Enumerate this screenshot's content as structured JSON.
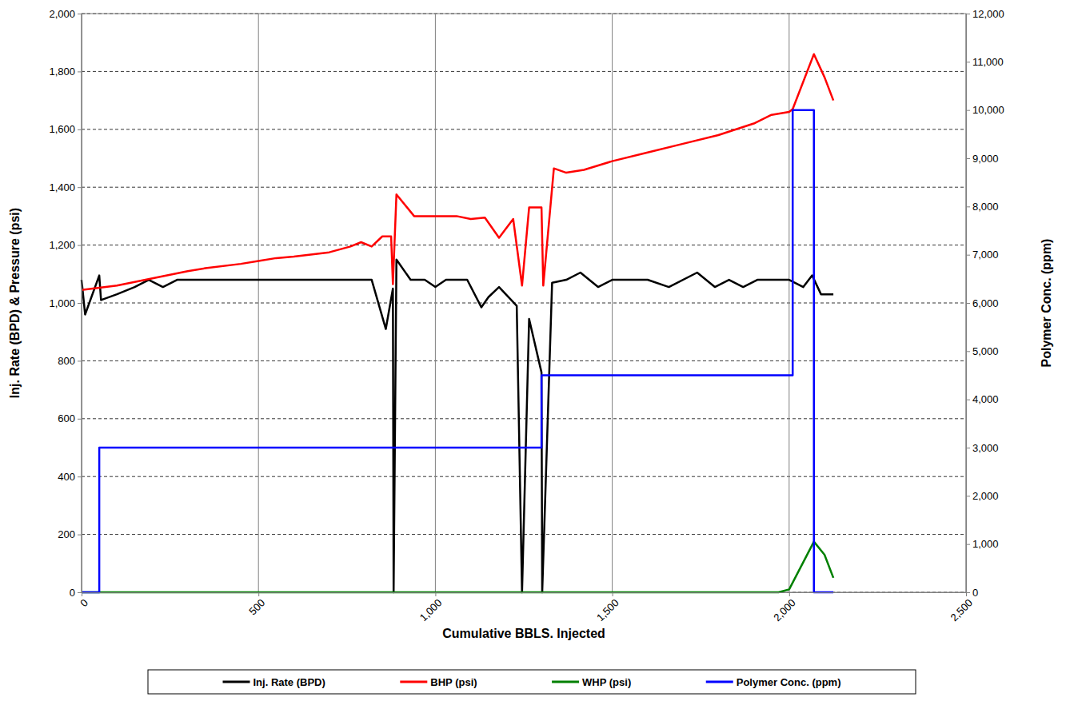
{
  "chart_data": {
    "type": "line",
    "x_label": "Cumulative BBLS. Injected",
    "y_label": "Inj. Rate (BPD) & Pressure (psi)",
    "y2_label": "Polymer Conc. (ppm)",
    "xlim": [
      0,
      2500
    ],
    "xticks": [
      0,
      500,
      {
        "value": 1000,
        "label": "1,000"
      },
      {
        "value": 1500,
        "label": "1,500"
      },
      {
        "value": 2000,
        "label": "2,000"
      },
      {
        "value": 2500,
        "label": "2,500"
      }
    ],
    "ylim": [
      0,
      2000
    ],
    "yticks": [
      0,
      200,
      400,
      600,
      800,
      {
        "value": 1000,
        "label": "1,000"
      },
      {
        "value": 1200,
        "label": "1,200"
      },
      {
        "value": 1400,
        "label": "1,400"
      },
      {
        "value": 1600,
        "label": "1,600"
      },
      {
        "value": 1800,
        "label": "1,800"
      },
      {
        "value": 2000,
        "label": "2,000"
      }
    ],
    "y2lim": [
      0,
      12000
    ],
    "y2ticks": [
      0,
      {
        "value": 1000,
        "label": "1,000"
      },
      {
        "value": 2000,
        "label": "2,000"
      },
      {
        "value": 3000,
        "label": "3,000"
      },
      {
        "value": 4000,
        "label": "4,000"
      },
      {
        "value": 5000,
        "label": "5,000"
      },
      {
        "value": 6000,
        "label": "6,000"
      },
      {
        "value": 7000,
        "label": "7,000"
      },
      {
        "value": 8000,
        "label": "8,000"
      },
      {
        "value": 9000,
        "label": "9,000"
      },
      {
        "value": 10000,
        "label": "10,000"
      },
      {
        "value": 11000,
        "label": "11,000"
      },
      {
        "value": 12000,
        "label": "12,000"
      }
    ],
    "grid": true,
    "legend": "bottom",
    "series": [
      {
        "name": "Inj. Rate (BPD)",
        "color": "#000000",
        "x": [
          0,
          10,
          50,
          55,
          100,
          150,
          190,
          230,
          270,
          500,
          820,
          860,
          880,
          882,
          890,
          930,
          970,
          1000,
          1030,
          1090,
          1130,
          1150,
          1180,
          1230,
          1245,
          1265,
          1300,
          1302,
          1330,
          1370,
          1410,
          1460,
          1500,
          1600,
          1660,
          1740,
          1790,
          1830,
          1870,
          1910,
          2000,
          2040,
          2065,
          2090,
          2125
        ],
        "values": [
          1080,
          960,
          1095,
          1010,
          1030,
          1055,
          1080,
          1055,
          1080,
          1080,
          1080,
          910,
          1050,
          0,
          1150,
          1080,
          1080,
          1055,
          1080,
          1080,
          985,
          1020,
          1055,
          990,
          0,
          945,
          760,
          0,
          1070,
          1080,
          1105,
          1055,
          1080,
          1080,
          1055,
          1105,
          1055,
          1080,
          1055,
          1080,
          1080,
          1055,
          1095,
          1030,
          1030
        ]
      },
      {
        "name": "BHP (psi)",
        "color": "#ff0000",
        "x": [
          0,
          100,
          200,
          300,
          350,
          450,
          500,
          550,
          600,
          700,
          760,
          790,
          820,
          850,
          875,
          880,
          890,
          940,
          1000,
          1060,
          1100,
          1140,
          1180,
          1220,
          1245,
          1265,
          1300,
          1305,
          1335,
          1370,
          1420,
          1500,
          1600,
          1700,
          1800,
          1850,
          1900,
          1950,
          2000,
          2010,
          2070,
          2100,
          2125
        ],
        "values": [
          1045,
          1060,
          1085,
          1110,
          1120,
          1135,
          1145,
          1155,
          1160,
          1175,
          1195,
          1210,
          1195,
          1230,
          1230,
          1065,
          1375,
          1300,
          1300,
          1300,
          1290,
          1295,
          1225,
          1290,
          1060,
          1330,
          1330,
          1060,
          1465,
          1450,
          1460,
          1490,
          1520,
          1550,
          1580,
          1600,
          1620,
          1650,
          1660,
          1670,
          1860,
          1780,
          1700
        ]
      },
      {
        "name": "WHP (psi)",
        "color": "#008000",
        "x": [
          0,
          1970,
          2000,
          2070,
          2100,
          2125
        ],
        "values": [
          0,
          0,
          10,
          175,
          130,
          50
        ]
      },
      {
        "name": "Polymer Conc. (ppm)",
        "color": "#0000ff",
        "axis": "y2",
        "x": [
          0,
          50,
          50,
          1300,
          1300,
          2010,
          2010,
          2070,
          2070,
          2125
        ],
        "values": [
          0,
          0,
          3000,
          3000,
          4500,
          4500,
          10000,
          10000,
          0,
          0
        ]
      }
    ]
  }
}
